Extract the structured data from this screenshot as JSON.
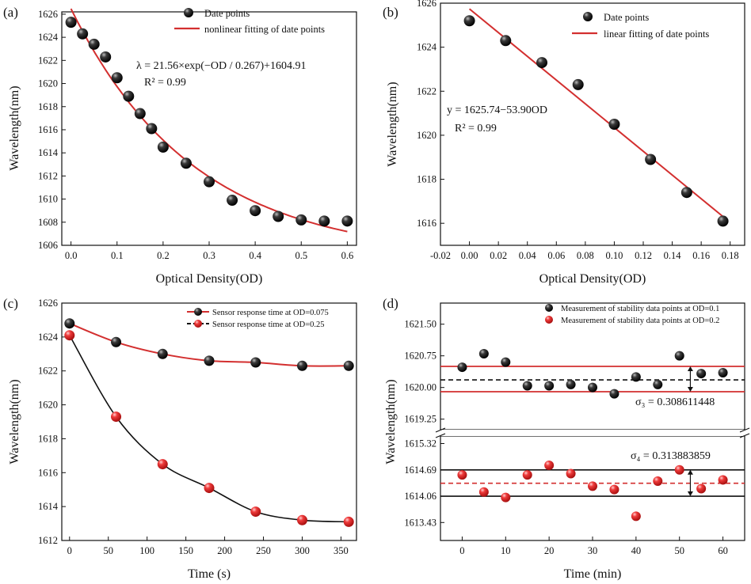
{
  "colors": {
    "line_red": "#d32f2f",
    "marker_black": "#111111",
    "marker_red": "#e53935",
    "line_black": "#111111"
  },
  "chart_data": [
    {
      "id": "a",
      "type": "scatter",
      "panel_label": "(a)",
      "xlabel": "Optical Density(OD)",
      "ylabel": "Wavelength(nm)",
      "xlim": [
        -0.02,
        0.62
      ],
      "ylim": [
        1606,
        1626.2
      ],
      "xticks": [
        0.0,
        0.1,
        0.2,
        0.3,
        0.4,
        0.5,
        0.6
      ],
      "xtick_labels": [
        "0.0",
        "0.1",
        "0.2",
        "0.3",
        "0.4",
        "0.5",
        "0.6"
      ],
      "yticks": [
        1606,
        1608,
        1610,
        1612,
        1614,
        1616,
        1618,
        1620,
        1622,
        1624,
        1626
      ],
      "ytick_labels": [
        "1606",
        "1608",
        "1610",
        "1612",
        "1614",
        "1616",
        "1618",
        "1620",
        "1622",
        "1624",
        "1626"
      ],
      "series": [
        {
          "name": "Date points",
          "x": [
            0,
            0.025,
            0.05,
            0.075,
            0.1,
            0.125,
            0.15,
            0.175,
            0.2,
            0.25,
            0.3,
            0.35,
            0.4,
            0.45,
            0.5,
            0.55,
            0.6
          ],
          "y": [
            1625.3,
            1624.3,
            1623.4,
            1622.3,
            1620.5,
            1618.9,
            1617.4,
            1616.1,
            1614.5,
            1613.1,
            1611.5,
            1609.9,
            1609.0,
            1608.5,
            1608.2,
            1608.1,
            1608.1
          ]
        },
        {
          "name": "nonlinear fitting of date points",
          "fit": {
            "kind": "exp",
            "a": 21.56,
            "t": 0.267,
            "c": 1604.91,
            "x0": 0.0,
            "x1": 0.6
          }
        }
      ],
      "annotations": [
        "λ = 21.56×exp(−OD / 0.267)+1604.91",
        "R² = 0.99"
      ],
      "legend_position": "top-right"
    },
    {
      "id": "b",
      "type": "scatter",
      "panel_label": "(b)",
      "xlabel": "Optical Density(OD)",
      "ylabel": "Wavelength(nm)",
      "xlim": [
        -0.02,
        0.19
      ],
      "ylim": [
        1615,
        1626
      ],
      "xticks": [
        -0.02,
        0.0,
        0.02,
        0.04,
        0.06,
        0.08,
        0.1,
        0.12,
        0.14,
        0.16,
        0.18
      ],
      "xtick_labels": [
        "-0.02",
        "0.00",
        "0.02",
        "0.04",
        "0.06",
        "0.08",
        "0.10",
        "0.12",
        "0.14",
        "0.16",
        "0.18"
      ],
      "yticks": [
        1616,
        1618,
        1620,
        1622,
        1624,
        1626
      ],
      "ytick_labels": [
        "1616",
        "1618",
        "1620",
        "1622",
        "1624",
        "1626"
      ],
      "series": [
        {
          "name": "Date points",
          "x": [
            0,
            0.025,
            0.05,
            0.075,
            0.1,
            0.125,
            0.15,
            0.175
          ],
          "y": [
            1625.2,
            1624.3,
            1623.3,
            1622.3,
            1620.5,
            1618.9,
            1617.4,
            1616.1
          ]
        },
        {
          "name": "linear fitting of date points",
          "fit": {
            "kind": "linear",
            "a": 1625.74,
            "b": -53.9,
            "x0": 0.0,
            "x1": 0.175
          }
        }
      ],
      "annotations": [
        "y = 1625.74−53.90OD",
        "R² = 0.99"
      ],
      "legend_position": "top-right"
    },
    {
      "id": "c",
      "type": "line",
      "panel_label": "(c)",
      "xlabel": "Time (s)",
      "ylabel": "Wavelength(nm)",
      "xlim": [
        -10,
        370
      ],
      "ylim": [
        1612,
        1626
      ],
      "xticks": [
        0,
        50,
        100,
        150,
        200,
        250,
        300,
        350
      ],
      "xtick_labels": [
        "0",
        "50",
        "100",
        "150",
        "200",
        "250",
        "300",
        "350"
      ],
      "yticks": [
        1612,
        1614,
        1616,
        1618,
        1620,
        1622,
        1624,
        1626
      ],
      "ytick_labels": [
        "1612",
        "1614",
        "1616",
        "1618",
        "1620",
        "1622",
        "1624",
        "1626"
      ],
      "series": [
        {
          "name": "Sensor response time at OD=0.075",
          "x": [
            0,
            60,
            120,
            180,
            240,
            300,
            360
          ],
          "y": [
            1624.8,
            1623.7,
            1623.0,
            1622.6,
            1622.5,
            1622.3,
            1622.3
          ]
        },
        {
          "name": "Sensor response time at OD=0.25",
          "x": [
            0,
            60,
            120,
            180,
            240,
            300,
            360
          ],
          "y": [
            1624.1,
            1619.3,
            1616.5,
            1615.1,
            1613.7,
            1613.2,
            1613.1
          ]
        }
      ],
      "legend_position": "top-right"
    },
    {
      "id": "d",
      "type": "scatter",
      "panel_label": "(d)",
      "xlabel": "Time (min)",
      "ylabel": "Wavelength(nm)",
      "xlim": [
        -5,
        65
      ],
      "xticks": [
        0,
        10,
        20,
        30,
        40,
        50,
        60
      ],
      "xtick_labels": [
        "0",
        "10",
        "20",
        "30",
        "40",
        "50",
        "60"
      ],
      "axis_break": true,
      "upper_ylim": [
        1619.0,
        1622.0
      ],
      "upper_yticks": [
        1619.25,
        1620.0,
        1620.75,
        1621.5
      ],
      "upper_ytick_labels": [
        "1619.25",
        "1620.00",
        "1620.75",
        "1621.50"
      ],
      "lower_ylim": [
        1613.0,
        1615.5
      ],
      "lower_yticks": [
        1613.43,
        1614.06,
        1614.69,
        1615.32
      ],
      "lower_ytick_labels": [
        "1613.43",
        "1614.06",
        "1614.69",
        "1615.32"
      ],
      "series": [
        {
          "name": "Measurement of stability data points at OD=0.1",
          "x": [
            0,
            5,
            10,
            15,
            20,
            25,
            30,
            35,
            40,
            45,
            50,
            55,
            60
          ],
          "y": [
            1620.48,
            1620.8,
            1620.6,
            1620.04,
            1620.04,
            1620.07,
            1620.0,
            1619.85,
            1620.25,
            1620.07,
            1620.75,
            1620.33,
            1620.35
          ],
          "mean": 1620.18,
          "band": [
            1619.9,
            1620.5
          ]
        },
        {
          "name": "Measurement of stability data points at OD=0.2",
          "x": [
            0,
            5,
            10,
            15,
            20,
            25,
            30,
            35,
            40,
            45,
            50,
            55,
            60
          ],
          "y": [
            1614.57,
            1614.16,
            1614.03,
            1614.57,
            1614.8,
            1614.6,
            1614.3,
            1614.22,
            1613.58,
            1614.42,
            1614.69,
            1614.24,
            1614.45
          ],
          "mean": 1614.37,
          "band": [
            1614.06,
            1614.69
          ]
        }
      ],
      "annotations": [
        "σ₃ = 0.308611448",
        "σ₄ = 0.313883859"
      ],
      "legend_position": "top-right"
    }
  ]
}
